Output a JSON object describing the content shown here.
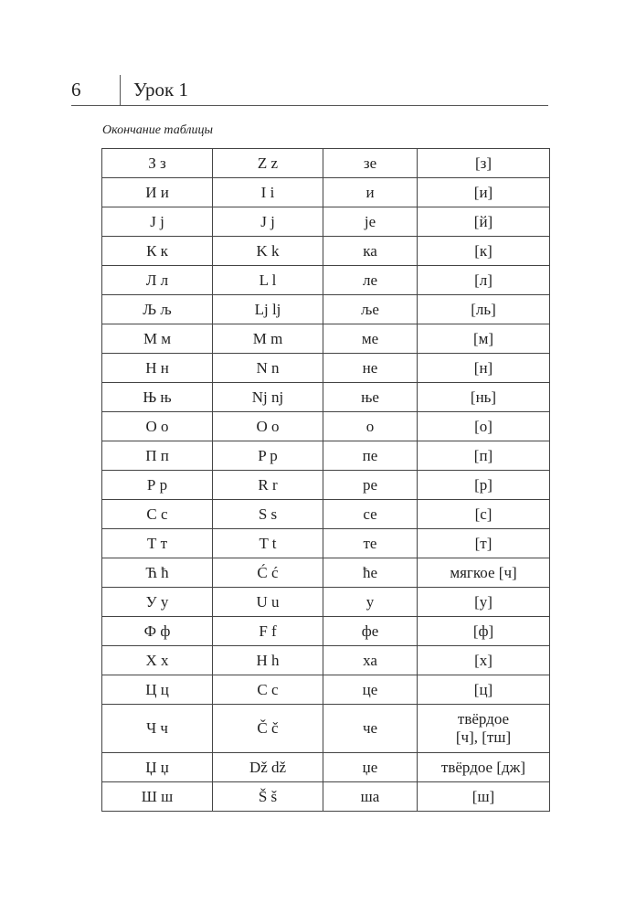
{
  "header": {
    "page_number": "6",
    "chapter": "Урок 1"
  },
  "caption": "Окончание таблицы",
  "table": {
    "rows": [
      [
        "З з",
        "Z z",
        "зе",
        "[з]"
      ],
      [
        "И и",
        "I i",
        "и",
        "[и]"
      ],
      [
        "J j",
        "J j",
        "je",
        "[й]"
      ],
      [
        "К к",
        "K k",
        "ка",
        "[к]"
      ],
      [
        "Л л",
        "L l",
        "ле",
        "[л]"
      ],
      [
        "Љ љ",
        "Lj lj",
        "ље",
        "[ль]"
      ],
      [
        "М м",
        "M m",
        "ме",
        "[м]"
      ],
      [
        "Н н",
        "N n",
        "не",
        "[н]"
      ],
      [
        "Њ њ",
        "Nj nj",
        "ње",
        "[нь]"
      ],
      [
        "О о",
        "O o",
        "о",
        "[о]"
      ],
      [
        "П п",
        "P p",
        "пе",
        "[п]"
      ],
      [
        "Р р",
        "R r",
        "ре",
        "[р]"
      ],
      [
        "С с",
        "S s",
        "се",
        "[с]"
      ],
      [
        "Т т",
        "T t",
        "те",
        "[т]"
      ],
      [
        "Ћ ћ",
        "Ć ć",
        "ће",
        "мягкое [ч]"
      ],
      [
        "У у",
        "U u",
        "у",
        "[у]"
      ],
      [
        "Ф ф",
        "F f",
        "фе",
        "[ф]"
      ],
      [
        "Х х",
        "H h",
        "ха",
        "[х]"
      ],
      [
        "Ц ц",
        "C c",
        "це",
        "[ц]"
      ],
      [
        "Ч ч",
        "Č č",
        "че",
        "твёрдое\n[ч], [тш]"
      ],
      [
        "Џ џ",
        "Dž dž",
        "џе",
        "твёрдое [дж]"
      ],
      [
        "Ш ш",
        "Š š",
        "ша",
        "[ш]"
      ]
    ]
  }
}
